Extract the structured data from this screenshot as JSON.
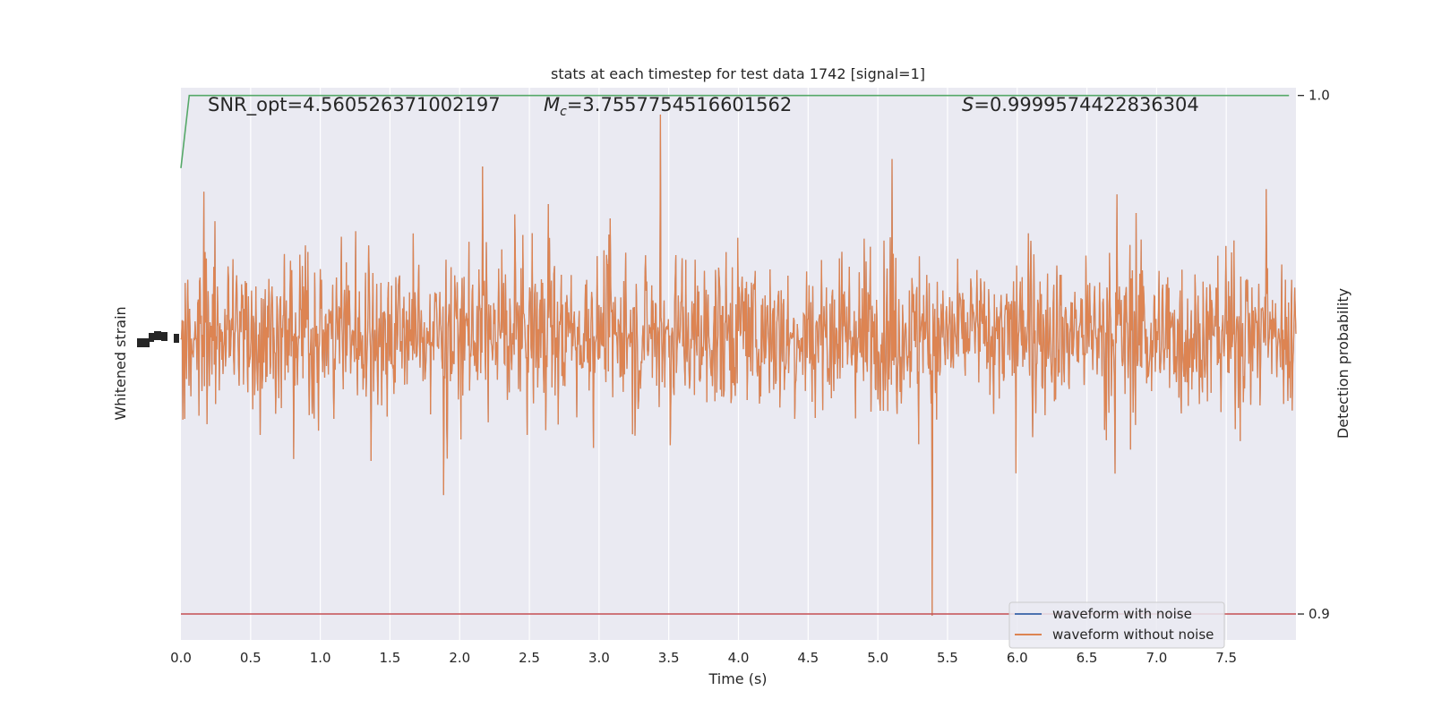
{
  "chart_data": {
    "type": "line",
    "title": "stats at each timestep for test data 1742 [signal=1]",
    "xlabel": "Time (s)",
    "ylabel_left": "Whitened strain",
    "ylabel_right": "Detection probability",
    "xlim": [
      0.0,
      8.0
    ],
    "x_ticks": [
      "0.0",
      "0.5",
      "1.0",
      "1.5",
      "2.0",
      "2.5",
      "3.0",
      "3.5",
      "4.0",
      "4.5",
      "5.0",
      "5.5",
      "6.0",
      "6.5",
      "7.0",
      "7.5"
    ],
    "y_right_ticks": [
      "0.9",
      "1.0"
    ],
    "y_right_lim": [
      0.895,
      1.0015
    ],
    "grid": true,
    "annotations": {
      "snr": "SNR_opt=4.560526371002197",
      "mc_value": "=3.7557754516601562",
      "s_value": "=0.9999574422836304"
    },
    "legend": {
      "placement": "lower-right",
      "entries": [
        {
          "label": "waveform with noise",
          "color": "#4c72b0"
        },
        {
          "label": "waveform without noise",
          "color": "#dd8452"
        }
      ]
    },
    "series": [
      {
        "name": "waveform with noise",
        "color": "#4c72b0"
      },
      {
        "name": "waveform without noise",
        "color": "#dd8452"
      },
      {
        "color": "#55a868",
        "x": [
          0.0,
          0.06,
          7.95
        ],
        "y": [
          0.986,
          1.0,
          1.0
        ]
      },
      {
        "color": "#c44e52",
        "x": [
          0.0,
          8.0
        ],
        "y": [
          0.9,
          0.9
        ]
      }
    ],
    "spikes": [
      {
        "x": 3.44,
        "y_frac": 0.0
      },
      {
        "x": 5.39,
        "y_frac": 1.0
      }
    ],
    "colors": {
      "background": "#eaeaf2",
      "grid": "#ffffff"
    }
  }
}
